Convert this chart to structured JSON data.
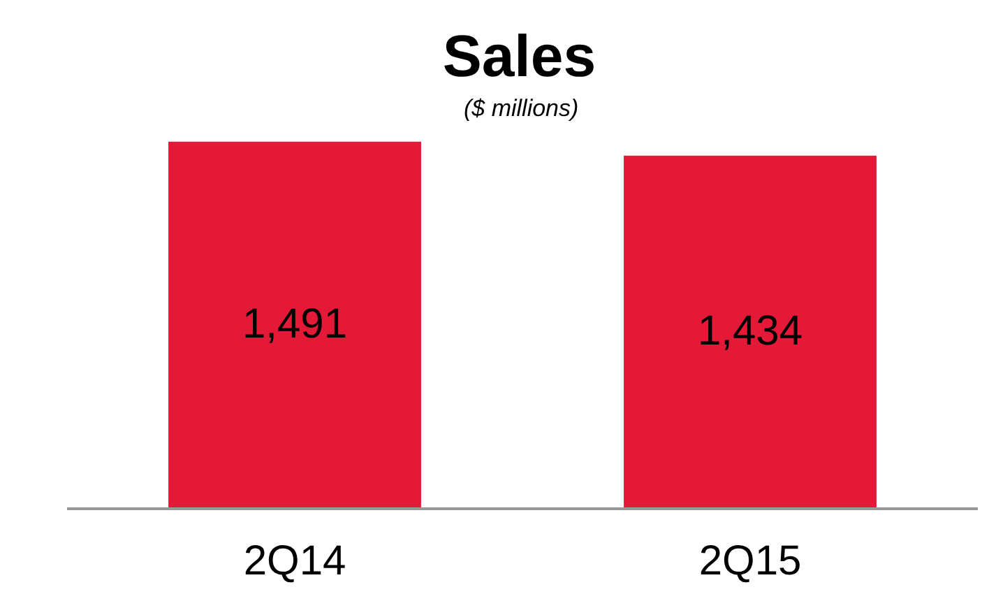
{
  "chart_data": {
    "type": "bar",
    "title": "Sales",
    "subtitle": "($ millions)",
    "categories": [
      "2Q14",
      "2Q15"
    ],
    "values": [
      1491,
      1434
    ],
    "value_labels": [
      "1,491",
      "1,434"
    ],
    "color": "#e31937",
    "tick_labels": "x"
  }
}
